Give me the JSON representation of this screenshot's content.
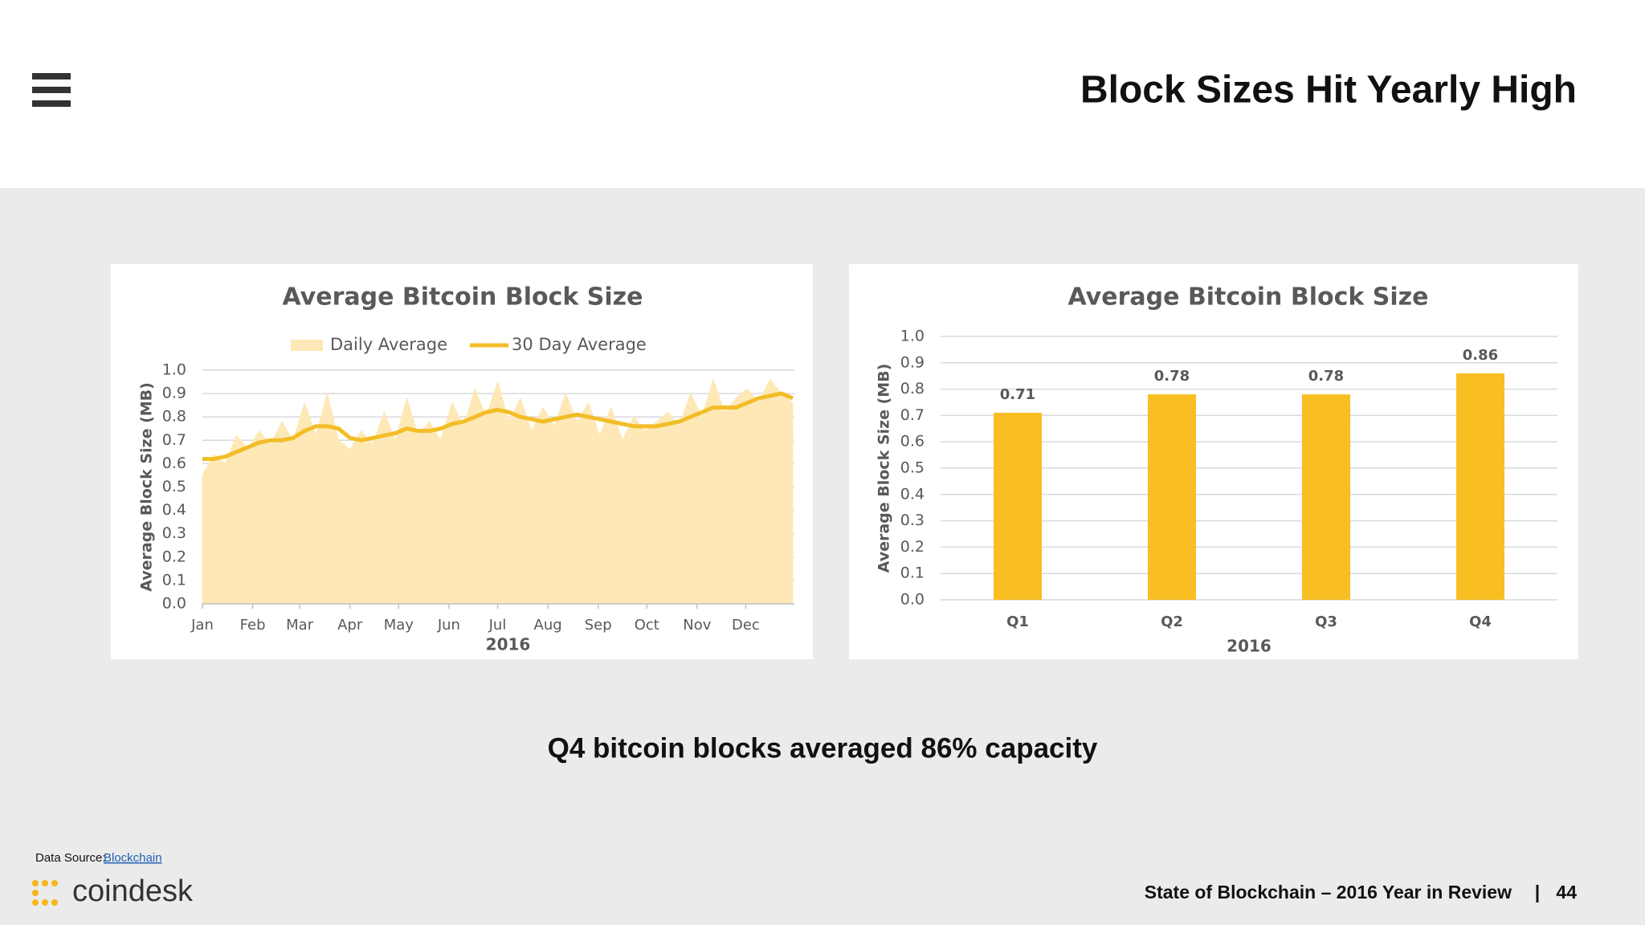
{
  "header": {
    "title": "Block Sizes Hit Yearly High"
  },
  "caption": "Q4 bitcoin blocks averaged 86% capacity",
  "footer": {
    "source_label": "Data Source:",
    "source_link": "Blockchain",
    "brand": "coindesk",
    "report": "State of Blockchain – 2016 Year in Review",
    "separator": "|",
    "page": 44
  },
  "chart_data": [
    {
      "type": "line",
      "title": "Average Bitcoin Block Size",
      "y_label": "Average Block Size (MB)",
      "x_label": "2016",
      "x": [
        1,
        8,
        15,
        22,
        29,
        36,
        43,
        50,
        57,
        64,
        71,
        78,
        85,
        92,
        99,
        106,
        113,
        120,
        127,
        134,
        141,
        148,
        155,
        162,
        169,
        176,
        183,
        190,
        197,
        204,
        211,
        218,
        225,
        232,
        239,
        246,
        253,
        260,
        267,
        274,
        281,
        288,
        295,
        302,
        309,
        316,
        323,
        330,
        337,
        344,
        351,
        358,
        365
      ],
      "xlim": [
        1,
        366
      ],
      "xticks": [
        {
          "value": 1,
          "label": "Jan"
        },
        {
          "value": 32,
          "label": "Feb"
        },
        {
          "value": 61,
          "label": "Mar"
        },
        {
          "value": 92,
          "label": "Apr"
        },
        {
          "value": 122,
          "label": "May"
        },
        {
          "value": 153,
          "label": "Jun"
        },
        {
          "value": 183,
          "label": "Jul"
        },
        {
          "value": 214,
          "label": "Aug"
        },
        {
          "value": 245,
          "label": "Sep"
        },
        {
          "value": 275,
          "label": "Oct"
        },
        {
          "value": 306,
          "label": "Nov"
        },
        {
          "value": 336,
          "label": "Dec"
        }
      ],
      "ylim": [
        0,
        1
      ],
      "yticks": [
        {
          "value": 0,
          "label": "0.0"
        },
        0.1,
        0.2,
        0.3,
        0.4,
        0.5,
        0.6,
        0.7,
        0.8,
        0.9,
        {
          "value": 1,
          "label": "1.0"
        }
      ],
      "grid": true,
      "legend": "top",
      "series": [
        {
          "name": "Daily Average",
          "color": "#fde8b6",
          "style": "area",
          "values": [
            0.55,
            0.64,
            0.6,
            0.72,
            0.66,
            0.74,
            0.68,
            0.78,
            0.7,
            0.86,
            0.72,
            0.9,
            0.7,
            0.66,
            0.74,
            0.68,
            0.82,
            0.7,
            0.88,
            0.72,
            0.78,
            0.7,
            0.86,
            0.76,
            0.92,
            0.8,
            0.95,
            0.78,
            0.88,
            0.74,
            0.84,
            0.76,
            0.9,
            0.78,
            0.86,
            0.72,
            0.84,
            0.7,
            0.8,
            0.74,
            0.78,
            0.82,
            0.76,
            0.9,
            0.8,
            0.96,
            0.82,
            0.88,
            0.92,
            0.86,
            0.96,
            0.9,
            0.86
          ]
        },
        {
          "name": "30 Day Average",
          "color": "#f2bd26",
          "style": "line",
          "values": [
            0.62,
            0.62,
            0.63,
            0.65,
            0.67,
            0.69,
            0.7,
            0.7,
            0.71,
            0.74,
            0.76,
            0.76,
            0.75,
            0.71,
            0.7,
            0.71,
            0.72,
            0.73,
            0.75,
            0.74,
            0.74,
            0.75,
            0.77,
            0.78,
            0.8,
            0.82,
            0.83,
            0.82,
            0.8,
            0.79,
            0.78,
            0.79,
            0.8,
            0.81,
            0.8,
            0.79,
            0.78,
            0.77,
            0.76,
            0.76,
            0.76,
            0.77,
            0.78,
            0.8,
            0.82,
            0.84,
            0.84,
            0.84,
            0.86,
            0.88,
            0.89,
            0.9,
            0.88
          ]
        }
      ]
    },
    {
      "type": "bar",
      "title": "Average Bitcoin Block Size",
      "y_label": "Average Block Size (MB)",
      "x_label": "2016",
      "categories": [
        "Q1",
        "Q2",
        "Q3",
        "Q4"
      ],
      "values": [
        0.71,
        0.78,
        0.78,
        0.86
      ],
      "color": "#f8be22",
      "ylim": [
        0,
        1
      ],
      "yticks": [
        {
          "value": 0,
          "label": "0.0"
        },
        0.1,
        0.2,
        0.3,
        0.4,
        0.5,
        0.6,
        0.7,
        0.8,
        0.9,
        {
          "value": 1,
          "label": "1.0"
        }
      ],
      "grid": true
    }
  ]
}
